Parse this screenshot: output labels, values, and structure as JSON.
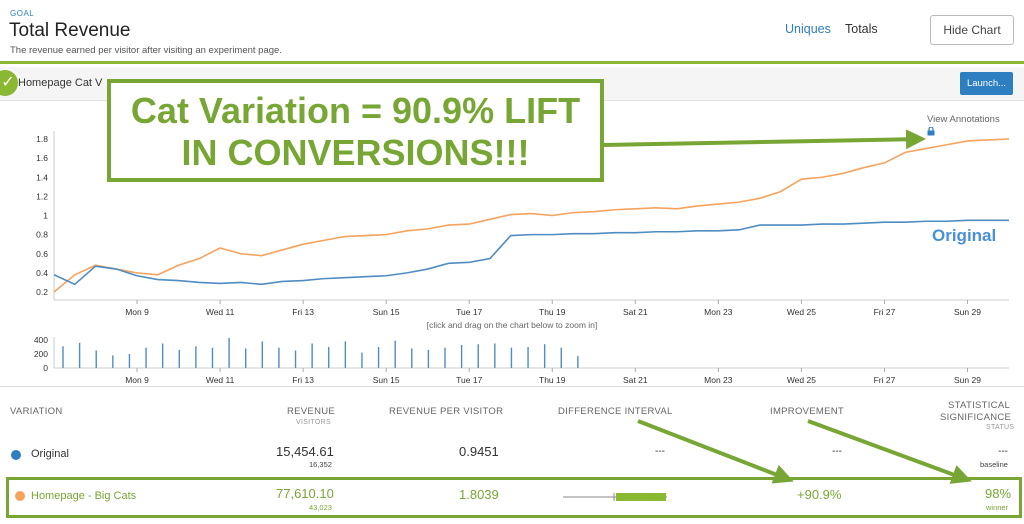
{
  "header": {
    "goal_label": "GOAL",
    "title": "Total Revenue",
    "description": "The revenue earned per visitor after visiting an experiment page.",
    "tabs": [
      "Uniques",
      "Totals"
    ],
    "hide_chart_label": "Hide Chart"
  },
  "subbar": {
    "variation_label": "Homepage Cat V",
    "launch_label": "Launch..."
  },
  "chart": {
    "view_annotations_label": "View Annotations",
    "zoom_hint": "[click and drag on the chart below to zoom in]",
    "original_label": "Original"
  },
  "callout": {
    "line1": "Cat Variation = 90.9% LIFT",
    "line2": "IN CONVERSIONS!!!"
  },
  "colors": {
    "accent_green": "#77a635",
    "brand_blue": "#2e7fc1",
    "orange_series": "#f5a35d",
    "blue_series": "#4f8cc2"
  },
  "icons": {
    "check": "check-icon",
    "lock": "lock-icon"
  },
  "table": {
    "headers": {
      "variation": "VARIATION",
      "revenue": "REVENUE",
      "revenue_sub": "VISITORS",
      "rpv": "REVENUE PER VISITOR",
      "diff": "DIFFERENCE INTERVAL",
      "improvement": "IMPROVEMENT",
      "stat_sig_1": "STATISTICAL",
      "stat_sig_2": "SIGNIFICANCE",
      "stat_sig_sub": "STATUS"
    },
    "rows": [
      {
        "name": "Original",
        "revenue": "15,454.61",
        "visitors": "16,352",
        "rpv": "0.9451",
        "diff": "---",
        "improvement": "---",
        "significance": "---",
        "status": "baseline"
      },
      {
        "name": "Homepage - Big Cats",
        "revenue": "77,610.10",
        "visitors": "43,023",
        "rpv": "1.8039",
        "improvement": "+90.9%",
        "significance": "98%",
        "status": "winner"
      }
    ]
  },
  "chart_data": {
    "type": "line",
    "title": "",
    "xlabel": "",
    "ylabel": "",
    "ylim": [
      0.2,
      1.8
    ],
    "yticks": [
      0.2,
      0.4,
      0.6,
      0.8,
      1,
      1.2,
      1.4,
      1.6,
      1.8
    ],
    "xtick_labels": [
      "Mon 9",
      "Wed 11",
      "Fri 13",
      "Sun 15",
      "Tue 17",
      "Thu 19",
      "Sat 21",
      "Mon 23",
      "Wed 25",
      "Fri 27",
      "Sun 29"
    ],
    "x": [
      7.0,
      7.5,
      8.0,
      8.5,
      9.0,
      9.5,
      10.0,
      10.5,
      11.0,
      11.5,
      12.0,
      12.5,
      13.0,
      13.5,
      14.0,
      14.5,
      15.0,
      15.5,
      16.0,
      16.5,
      17.0,
      17.5,
      18.0,
      18.5,
      19.0,
      19.5,
      20.0,
      20.5,
      21.0,
      21.5,
      22.0,
      22.5,
      23.0,
      23.5,
      24.0,
      24.5,
      25.0,
      25.5,
      26.0,
      26.5,
      27.0,
      27.5,
      28.0,
      28.5,
      29.0,
      29.5,
      30.0
    ],
    "series": [
      {
        "name": "Homepage - Big Cats",
        "color": "#f5a35d",
        "values": [
          0.2,
          0.38,
          0.48,
          0.44,
          0.4,
          0.38,
          0.48,
          0.55,
          0.66,
          0.6,
          0.58,
          0.64,
          0.7,
          0.74,
          0.78,
          0.79,
          0.8,
          0.84,
          0.86,
          0.9,
          0.91,
          0.96,
          1.01,
          1.02,
          1.0,
          1.03,
          1.04,
          1.06,
          1.07,
          1.08,
          1.07,
          1.1,
          1.12,
          1.14,
          1.18,
          1.25,
          1.38,
          1.4,
          1.44,
          1.5,
          1.55,
          1.66,
          1.7,
          1.74,
          1.78,
          1.79,
          1.8
        ]
      },
      {
        "name": "Original",
        "color": "#4f8cc2",
        "values": [
          0.38,
          0.28,
          0.47,
          0.44,
          0.37,
          0.33,
          0.32,
          0.3,
          0.29,
          0.3,
          0.28,
          0.31,
          0.32,
          0.34,
          0.35,
          0.36,
          0.37,
          0.4,
          0.44,
          0.5,
          0.51,
          0.55,
          0.79,
          0.8,
          0.8,
          0.81,
          0.81,
          0.82,
          0.82,
          0.83,
          0.83,
          0.84,
          0.84,
          0.85,
          0.9,
          0.9,
          0.9,
          0.91,
          0.91,
          0.92,
          0.93,
          0.93,
          0.94,
          0.94,
          0.95,
          0.95,
          0.95
        ]
      }
    ]
  },
  "mini_chart_data": {
    "type": "bar",
    "yticks": [
      0,
      200,
      400
    ],
    "x": [
      7.2,
      7.6,
      8.0,
      8.4,
      8.8,
      9.2,
      9.6,
      10.0,
      10.4,
      10.8,
      11.2,
      11.6,
      12.0,
      12.4,
      12.8,
      13.2,
      13.6,
      14.0,
      14.4,
      14.8,
      15.2,
      15.6,
      16.0,
      16.4,
      16.8,
      17.2,
      17.6,
      18.0,
      18.4,
      18.8,
      19.2,
      19.6
    ],
    "values": [
      310,
      360,
      250,
      180,
      200,
      290,
      350,
      260,
      310,
      290,
      430,
      280,
      380,
      290,
      250,
      350,
      300,
      380,
      220,
      300,
      390,
      280,
      260,
      290,
      330,
      340,
      350,
      290,
      300,
      340,
      290,
      170
    ]
  }
}
